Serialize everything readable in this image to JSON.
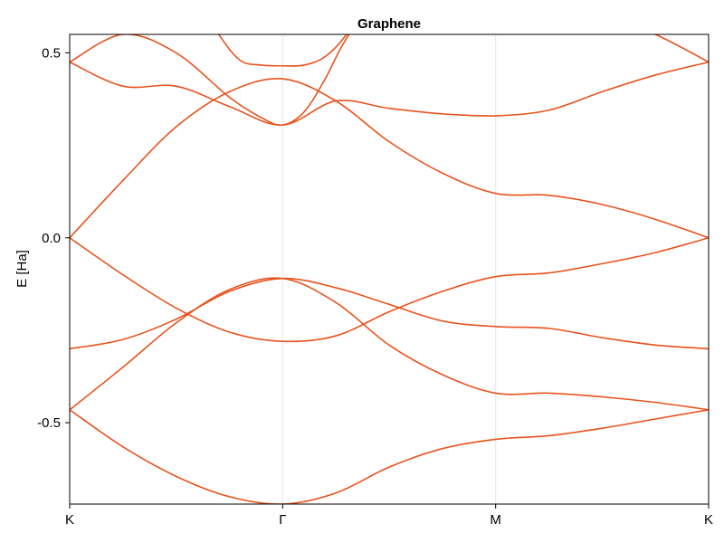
{
  "chart_data": {
    "type": "line",
    "title": "Graphene",
    "xlabel": "",
    "ylabel": "E [Ha]",
    "ylim": [
      -0.72,
      0.55
    ],
    "grid": "vertical lines at high-symmetry points",
    "x_ticks": [
      {
        "x": 0,
        "label": "K"
      },
      {
        "x": 1,
        "label": "Γ"
      },
      {
        "x": 2,
        "label": "M"
      },
      {
        "x": 3,
        "label": "K"
      }
    ],
    "y_ticks": [
      {
        "value": 0.5,
        "label": "0.5"
      },
      {
        "value": 0.0,
        "label": "0.0"
      },
      {
        "value": -0.5,
        "label": "-0.5"
      }
    ],
    "line_color": "#e8531e",
    "series": [
      {
        "x": [
          0,
          0.25,
          0.5,
          0.75,
          1,
          1.25,
          1.5,
          1.75,
          2,
          2.25,
          2.5,
          2.75,
          3
        ],
        "values": [
          -0.465,
          -0.565,
          -0.645,
          -0.7,
          -0.72,
          -0.69,
          -0.62,
          -0.57,
          -0.545,
          -0.535,
          -0.515,
          -0.49,
          -0.465
        ]
      },
      {
        "x": [
          0,
          0.25,
          0.5,
          0.75,
          1,
          1.25,
          1.5,
          1.75,
          2,
          2.25,
          2.5,
          2.75,
          3
        ],
        "values": [
          -0.465,
          -0.35,
          -0.23,
          -0.14,
          -0.11,
          -0.175,
          -0.29,
          -0.37,
          -0.42,
          -0.42,
          -0.43,
          -0.445,
          -0.465
        ]
      },
      {
        "x": [
          0,
          0.25,
          0.5,
          0.75,
          1,
          1.25,
          1.5,
          1.75,
          2,
          2.25,
          2.5,
          2.75,
          3
        ],
        "values": [
          -0.3,
          -0.275,
          -0.22,
          -0.145,
          -0.11,
          -0.135,
          -0.18,
          -0.225,
          -0.24,
          -0.245,
          -0.27,
          -0.29,
          -0.3
        ]
      },
      {
        "x": [
          0,
          0.25,
          0.5,
          0.75,
          1,
          1.25,
          1.5,
          1.75,
          2,
          2.25,
          2.5,
          2.75,
          3
        ],
        "values": [
          0.0,
          -0.1,
          -0.19,
          -0.255,
          -0.28,
          -0.265,
          -0.2,
          -0.145,
          -0.105,
          -0.095,
          -0.07,
          -0.04,
          0.0
        ]
      },
      {
        "x": [
          0,
          0.25,
          0.5,
          0.75,
          1,
          1.25,
          1.5,
          1.75,
          2,
          2.25,
          2.5,
          2.75,
          3
        ],
        "values": [
          0.0,
          0.155,
          0.3,
          0.395,
          0.43,
          0.37,
          0.26,
          0.175,
          0.12,
          0.115,
          0.09,
          0.05,
          0.0
        ]
      },
      {
        "x": [
          0,
          0.25,
          0.5,
          0.75,
          1,
          1.25,
          1.5,
          1.75,
          2,
          2.25,
          2.5,
          2.75,
          3
        ],
        "values": [
          0.475,
          0.41,
          0.41,
          0.355,
          0.305,
          0.37,
          0.35,
          0.335,
          0.33,
          0.345,
          0.395,
          0.44,
          0.475
        ]
      },
      {
        "x": [
          0,
          0.25,
          0.5,
          0.75,
          0.9,
          1,
          1.1,
          1.2,
          1.28,
          1.4
        ],
        "values": [
          0.475,
          0.55,
          0.5,
          0.38,
          0.325,
          0.305,
          0.34,
          0.43,
          0.52,
          0.63
        ]
      },
      {
        "x": [
          0.62,
          0.7,
          0.8,
          0.9,
          1,
          1.1,
          1.2,
          1.3,
          1.38,
          1.45
        ],
        "values": [
          0.63,
          0.55,
          0.48,
          0.467,
          0.465,
          0.467,
          0.49,
          0.55,
          0.63,
          0.7
        ]
      },
      {
        "x": [
          2.5,
          2.75,
          3
        ],
        "values": [
          0.6,
          0.55,
          0.475
        ]
      }
    ]
  }
}
